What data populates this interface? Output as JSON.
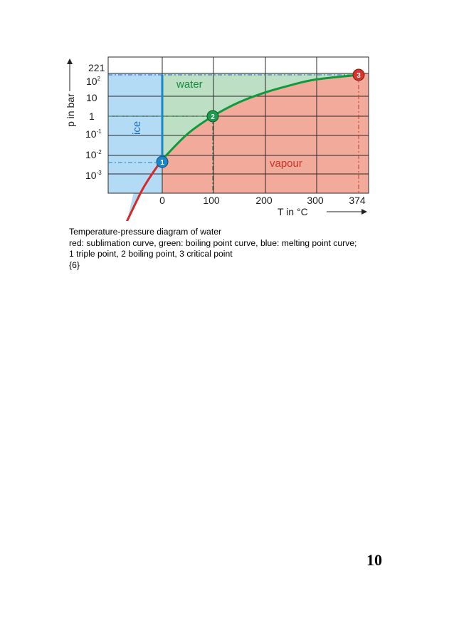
{
  "chart_data": {
    "type": "line",
    "xlabel": "T in °C",
    "ylabel": "p in bar",
    "x_tick_labels": [
      "0",
      "100",
      "200",
      "300",
      "374"
    ],
    "y_tick_labels": [
      {
        "base": "221",
        "exp": ""
      },
      {
        "base": "10",
        "exp": "2"
      },
      {
        "base": "10",
        "exp": ""
      },
      {
        "base": "1",
        "exp": ""
      },
      {
        "base": "10",
        "exp": "-1"
      },
      {
        "base": "10",
        "exp": "-2"
      },
      {
        "base": "10",
        "exp": "-3"
      }
    ],
    "region_labels": {
      "water": "water",
      "ice": "ice",
      "vapour": "vapour"
    },
    "points": [
      {
        "label": "1",
        "T": 0.01,
        "p": 0.006
      },
      {
        "label": "2",
        "T": 100,
        "p": 1
      },
      {
        "label": "3",
        "T": 374,
        "p": 221
      }
    ],
    "series": [
      {
        "color": "#d42a2a",
        "T": [
          -70,
          -40,
          -20,
          0.01
        ],
        "p": [
          2.7e-06,
          0.00013,
          0.001,
          0.006
        ]
      },
      {
        "color": "#0f9a3e",
        "T": [
          0.01,
          50,
          100,
          150,
          200,
          250,
          300,
          374
        ],
        "p": [
          0.006,
          0.12,
          1,
          4.8,
          15.5,
          40,
          86,
          221
        ]
      },
      {
        "color": "#1b86c8",
        "T": [
          0.01,
          0.01
        ],
        "p": [
          0.006,
          221
        ]
      }
    ],
    "colors": {
      "ice": "#b3dbf5",
      "water": "#bde0c5",
      "vapour": "#f2ab9a",
      "grid": "#2a2a2a"
    }
  },
  "caption": {
    "title": "Temperature-pressure diagram of water",
    "line2": "red: sublimation curve,  green: boiling point curve,  blue: melting point curve;",
    "line3": "1 triple point,  2 boiling point,  3 critical point",
    "reference": "{6}"
  },
  "page_number": "10"
}
